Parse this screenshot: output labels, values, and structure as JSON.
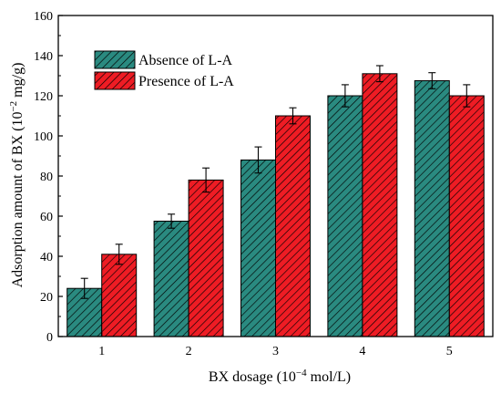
{
  "chart_data": {
    "type": "bar",
    "categories": [
      "1",
      "2",
      "3",
      "4",
      "5"
    ],
    "series": [
      {
        "name": "Absence of L-A",
        "values": [
          24,
          57.5,
          88,
          120,
          127.5
        ],
        "errors": [
          5,
          3.5,
          6.5,
          5.5,
          4
        ],
        "color": "#2a8a80"
      },
      {
        "name": "Presence of L-A",
        "values": [
          41,
          78,
          110,
          131,
          120
        ],
        "errors": [
          5,
          6,
          4,
          4,
          5.5
        ],
        "color": "#ee1c24"
      }
    ],
    "ylim": [
      0,
      160
    ],
    "yticks": [
      "0",
      "20",
      "40",
      "60",
      "80",
      "100",
      "120",
      "140",
      "160"
    ],
    "legend_position": "top-left",
    "grid": false,
    "pattern": "diagonal hatch"
  },
  "axis_text": {
    "ylabel": "Adsorption amount of BX (10",
    "ylabel_exp": "−2",
    "ylabel_unit": " mg/g)",
    "xlabel": "BX dosage (10",
    "xlabel_exp": "−4",
    "xlabel_unit": " mol/L)"
  }
}
